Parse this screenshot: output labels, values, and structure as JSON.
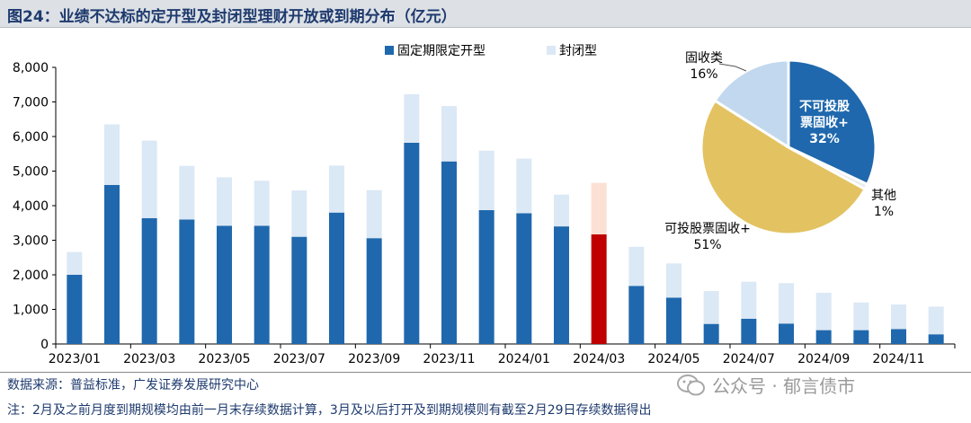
{
  "title": "图24：业绩不达标的定开型及封闭型理财开放或到期分布（亿元）",
  "source": "数据来源：普益标准，广发证券发展研究中心",
  "note": "注：2月及之前月度到期规模均由前一月末存续数据计算，3月及以后打开及到期规模则有截至2月29日存续数据得出",
  "watermark": "公众号 · 郁言债市",
  "colors": {
    "fixed": "#1f68ad",
    "closed": "#dbe8f5",
    "highlight_fixed": "#c00000",
    "highlight_closed": "#fbe0d4",
    "pie_a": "#1f68ad",
    "pie_b": "#e8ecf0",
    "pie_c": "#e3c262",
    "pie_d": "#c2d8ee"
  },
  "chart_data": [
    {
      "type": "bar",
      "stacked": true,
      "categories": [
        "2023/01",
        "2023/02",
        "2023/03",
        "2023/04",
        "2023/05",
        "2023/06",
        "2023/07",
        "2023/08",
        "2023/09",
        "2023/10",
        "2023/11",
        "2023/12",
        "2024/01",
        "2024/02",
        "2024/03",
        "2024/04",
        "2024/05",
        "2024/06",
        "2024/07",
        "2024/08",
        "2024/09",
        "2024/10",
        "2024/11",
        "2024/12"
      ],
      "tick_labels": [
        "2023/01",
        "2023/03",
        "2023/05",
        "2023/07",
        "2023/09",
        "2023/11",
        "2024/01",
        "2024/03",
        "2024/05",
        "2024/07",
        "2024/09",
        "2024/11"
      ],
      "series": [
        {
          "name": "固定期限定开型",
          "values": [
            2000,
            4600,
            3640,
            3600,
            3420,
            3420,
            3100,
            3800,
            3060,
            5820,
            5280,
            3870,
            3780,
            3400,
            3170,
            1680,
            1340,
            580,
            730,
            590,
            400,
            400,
            430,
            280
          ]
        },
        {
          "name": "封闭型",
          "values": [
            660,
            1750,
            2240,
            1550,
            1400,
            1300,
            1340,
            1360,
            1390,
            1400,
            1600,
            1720,
            1580,
            920,
            1490,
            1130,
            990,
            950,
            1070,
            1170,
            1080,
            800,
            710,
            800
          ]
        }
      ],
      "highlight_index": 14,
      "ylim": [
        0,
        8000
      ],
      "yticks": [
        0,
        1000,
        2000,
        3000,
        4000,
        5000,
        6000,
        7000,
        8000
      ],
      "ytick_labels": [
        "0",
        "1,000",
        "2,000",
        "3,000",
        "4,000",
        "5,000",
        "6,000",
        "7,000",
        "8,000"
      ],
      "legend": "top-center",
      "grid": false
    },
    {
      "type": "pie",
      "slices": [
        {
          "label_lines": [
            "不可投股",
            "票固收+"
          ],
          "pct_label": "32%",
          "value": 32
        },
        {
          "label_lines": [
            "其他"
          ],
          "pct_label": "1%",
          "value": 1
        },
        {
          "label_lines": [
            "可投股票固收+"
          ],
          "pct_label": "51%",
          "value": 51
        },
        {
          "label_lines": [
            "固收类"
          ],
          "pct_label": "16%",
          "value": 16
        }
      ]
    }
  ]
}
